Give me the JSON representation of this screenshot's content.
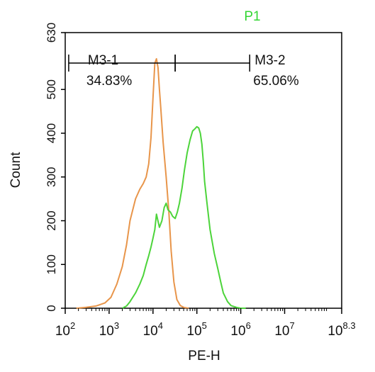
{
  "chart_data": {
    "type": "line",
    "title": "P1",
    "xlabel": "PE-H",
    "ylabel": "Count",
    "x_scale": "log10",
    "xlim": [
      100,
      199526231.5
    ],
    "ylim": [
      0,
      630
    ],
    "x_ticks": [
      {
        "value": 100,
        "base": "10",
        "exp": "2"
      },
      {
        "value": 1000,
        "base": "10",
        "exp": "3"
      },
      {
        "value": 10000,
        "base": "10",
        "exp": "4"
      },
      {
        "value": 100000,
        "base": "10",
        "exp": "5"
      },
      {
        "value": 1000000,
        "base": "10",
        "exp": "6"
      },
      {
        "value": 10000000,
        "base": "10",
        "exp": "7"
      },
      {
        "value": 199526231.5,
        "base": "10",
        "exp": "8.3"
      }
    ],
    "y_ticks": [
      {
        "value": 0,
        "label": "0"
      },
      {
        "value": 100,
        "label": "100"
      },
      {
        "value": 200,
        "label": "200"
      },
      {
        "value": 300,
        "label": "300"
      },
      {
        "value": 400,
        "label": "400"
      },
      {
        "value": 500,
        "label": "500"
      },
      {
        "value": 630,
        "label": "630"
      }
    ],
    "gates": [
      {
        "label": "M3-1",
        "percent": "34.83%",
        "x_start": 120,
        "x_end": 32000
      },
      {
        "label": "M3-2",
        "percent": "65.06%",
        "x_start": 32000,
        "x_end": 1600000
      }
    ],
    "series": [
      {
        "color": "#e8954a",
        "x": [
          180,
          300,
          500,
          800,
          1100,
          1500,
          2000,
          2500,
          3000,
          4000,
          5000,
          6000,
          7000,
          8000,
          9000,
          10000,
          11000,
          12000,
          13000,
          14000,
          15000,
          17000,
          20000,
          23000,
          26000,
          30000,
          35000,
          42000,
          50000,
          65000
        ],
        "y": [
          0,
          2,
          5,
          12,
          25,
          55,
          95,
          145,
          200,
          250,
          272,
          285,
          300,
          330,
          390,
          480,
          560,
          570,
          550,
          500,
          460,
          380,
          300,
          220,
          130,
          60,
          20,
          6,
          2,
          0
        ]
      },
      {
        "color": "#4cd43a",
        "x": [
          2000,
          2500,
          3000,
          4000,
          5000,
          6000,
          7000,
          8000,
          9000,
          10000,
          11000,
          12000,
          14000,
          16000,
          18000,
          20000,
          22000,
          25000,
          28000,
          32000,
          36000,
          40000,
          46000,
          52000,
          60000,
          70000,
          80000,
          90000,
          100000,
          110000,
          120000,
          130000,
          140000,
          150000,
          170000,
          200000,
          250000,
          300000,
          350000,
          400000,
          500000,
          600000,
          800000,
          1000000,
          1300000
        ],
        "y": [
          0,
          5,
          15,
          35,
          55,
          75,
          100,
          120,
          140,
          160,
          180,
          215,
          185,
          200,
          230,
          240,
          225,
          220,
          210,
          205,
          220,
          240,
          275,
          315,
          355,
          385,
          405,
          410,
          415,
          412,
          400,
          375,
          335,
          290,
          240,
          180,
          125,
          90,
          60,
          35,
          15,
          6,
          2,
          0,
          0
        ]
      }
    ]
  }
}
